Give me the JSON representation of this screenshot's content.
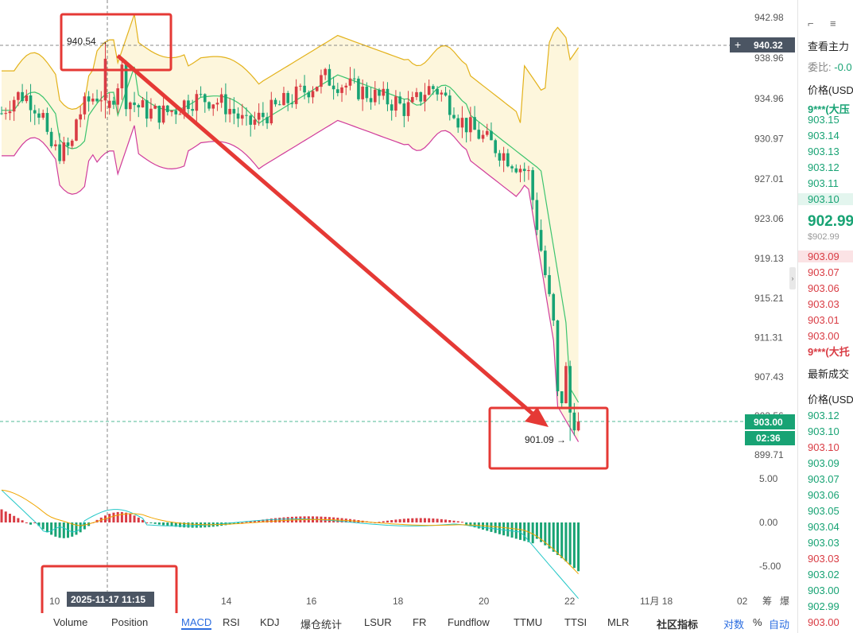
{
  "chart": {
    "price_axis": [
      "942.98",
      "938.96",
      "934.96",
      "930.97",
      "927.01",
      "923.06",
      "919.13",
      "915.21",
      "911.31",
      "907.43",
      "903.56",
      "899.71"
    ],
    "macd_axis": [
      "5.00",
      "0.00",
      "-5.00"
    ],
    "x_axis": [
      "10",
      "14",
      "16",
      "18",
      "20",
      "22",
      "11月 18",
      "02"
    ],
    "crosshair_date": "2025-11-17 11:15",
    "crosshair_price": "940.32",
    "crosshair_plus": "+",
    "high_label": "940.54",
    "low_label": "901.09",
    "current_price": "903.00",
    "countdown": "02:36",
    "extra_axis_labels": [
      "筹",
      "爆"
    ],
    "colors": {
      "up": "#d93c44",
      "down": "#18a374",
      "boll_upper": "#e3b21b",
      "boll_mid": "#3cc46e",
      "boll_lower": "#d03c9c",
      "annotation": "#e53935"
    }
  },
  "tabs": [
    "Volume",
    "Position",
    "MACD",
    "RSI",
    "KDJ",
    "爆仓统计",
    "LSUR",
    "FR",
    "Fundflow",
    "TTMU",
    "TTSI",
    "MLR"
  ],
  "active_tab": "MACD",
  "tab_tools": {
    "community": "社区指标",
    "compare": "对数",
    "percent": "%",
    "auto": "自动"
  },
  "orderbook": {
    "top_icons": [
      "⌐",
      "≡"
    ],
    "title": "查看主力",
    "ratio_label": "委比:",
    "ratio_value": "-0.0",
    "header": "价格(USD",
    "ask_big": "9***(大压",
    "asks": [
      "903.15",
      "903.14",
      "903.13",
      "903.12",
      "903.11",
      "903.10"
    ],
    "mid_price": "902.99",
    "mid_usd": "$902.99",
    "bids": [
      "903.09",
      "903.07",
      "903.06",
      "903.03",
      "903.01",
      "903.00"
    ],
    "bid_big": "9***(大托",
    "trades_title": "最新成交",
    "trades_header": "价格(USD",
    "trades": [
      {
        "p": "903.12",
        "c": "green"
      },
      {
        "p": "903.10",
        "c": "green"
      },
      {
        "p": "903.10",
        "c": "red"
      },
      {
        "p": "903.09",
        "c": "green"
      },
      {
        "p": "903.07",
        "c": "green"
      },
      {
        "p": "903.06",
        "c": "green"
      },
      {
        "p": "903.05",
        "c": "green"
      },
      {
        "p": "903.04",
        "c": "green"
      },
      {
        "p": "903.03",
        "c": "green"
      },
      {
        "p": "903.03",
        "c": "red"
      },
      {
        "p": "903.02",
        "c": "green"
      },
      {
        "p": "903.00",
        "c": "green"
      },
      {
        "p": "902.99",
        "c": "green"
      },
      {
        "p": "903.00",
        "c": "red"
      }
    ]
  }
}
